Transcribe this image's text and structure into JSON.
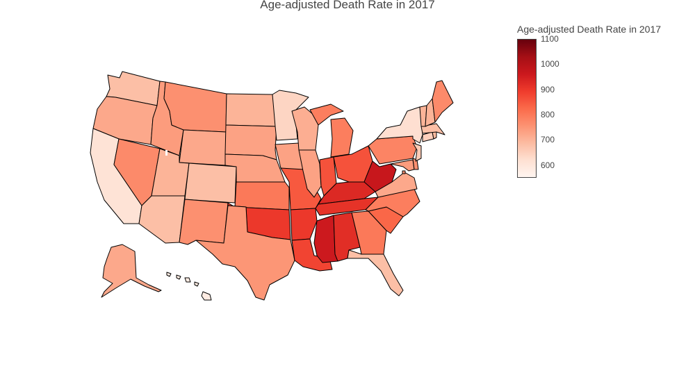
{
  "chart_data": {
    "type": "choropleth",
    "title": "Age-adjusted Death Rate in 2017",
    "colorbar": {
      "title": "Age-adjusted Death Rate in 2017",
      "range": [
        550,
        1100
      ],
      "ticks": [
        "600",
        "700",
        "800",
        "900",
        "1000",
        "1100"
      ],
      "tick_values": [
        600,
        700,
        800,
        900,
        1000,
        1100
      ],
      "colorscale": [
        "#fff5f0",
        "#fee0d2",
        "#fcbba1",
        "#fc9272",
        "#fb6a4a",
        "#ef3b2c",
        "#cb181d",
        "#a50f15",
        "#67000d"
      ]
    },
    "states": [
      {
        "code": "WA",
        "value": 680
      },
      {
        "code": "OR",
        "value": 720
      },
      {
        "code": "CA",
        "value": 610
      },
      {
        "code": "NV",
        "value": 770
      },
      {
        "code": "ID",
        "value": 740
      },
      {
        "code": "MT",
        "value": 760
      },
      {
        "code": "WY",
        "value": 720
      },
      {
        "code": "UT",
        "value": 700
      },
      {
        "code": "AZ",
        "value": 680
      },
      {
        "code": "CO",
        "value": 680
      },
      {
        "code": "NM",
        "value": 760
      },
      {
        "code": "ND",
        "value": 700
      },
      {
        "code": "SD",
        "value": 730
      },
      {
        "code": "NE",
        "value": 730
      },
      {
        "code": "KS",
        "value": 800
      },
      {
        "code": "OK",
        "value": 900
      },
      {
        "code": "TX",
        "value": 750
      },
      {
        "code": "MN",
        "value": 640
      },
      {
        "code": "IA",
        "value": 730
      },
      {
        "code": "MO",
        "value": 850
      },
      {
        "code": "AR",
        "value": 900
      },
      {
        "code": "LA",
        "value": 880
      },
      {
        "code": "WI",
        "value": 710
      },
      {
        "code": "IL",
        "value": 730
      },
      {
        "code": "MI",
        "value": 790
      },
      {
        "code": "IN",
        "value": 860
      },
      {
        "code": "OH",
        "value": 860
      },
      {
        "code": "KY",
        "value": 930
      },
      {
        "code": "TN",
        "value": 910
      },
      {
        "code": "MS",
        "value": 960
      },
      {
        "code": "AL",
        "value": 920
      },
      {
        "code": "GA",
        "value": 800
      },
      {
        "code": "FL",
        "value": 680
      },
      {
        "code": "SC",
        "value": 830
      },
      {
        "code": "NC",
        "value": 790
      },
      {
        "code": "VA",
        "value": 720
      },
      {
        "code": "WV",
        "value": 970
      },
      {
        "code": "PA",
        "value": 780
      },
      {
        "code": "NY",
        "value": 620
      },
      {
        "code": "VT",
        "value": 700
      },
      {
        "code": "NH",
        "value": 700
      },
      {
        "code": "ME",
        "value": 770
      },
      {
        "code": "MA",
        "value": 680
      },
      {
        "code": "RI",
        "value": 690
      },
      {
        "code": "CT",
        "value": 650
      },
      {
        "code": "NJ",
        "value": 660
      },
      {
        "code": "DE",
        "value": 760
      },
      {
        "code": "MD",
        "value": 740
      },
      {
        "code": "DC",
        "value": 760
      },
      {
        "code": "AK",
        "value": 720
      },
      {
        "code": "HI",
        "value": 580
      }
    ]
  }
}
